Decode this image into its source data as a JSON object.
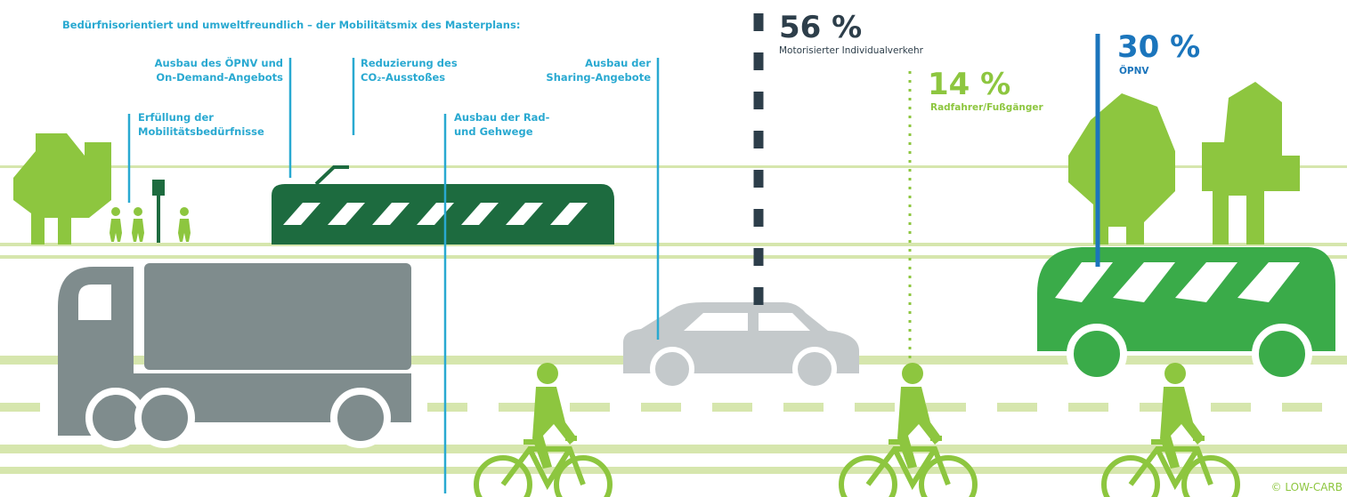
{
  "header": {
    "title": "Bedürfnisorientiert und umweltfreundlich – der Mobilitätsmix des Masterplans:"
  },
  "goals": [
    {
      "lines": [
        "Ausbau des ÖPNV und",
        "On-Demand-Angebots"
      ]
    },
    {
      "lines": [
        "Reduzierung des",
        "CO₂-Ausstoßes"
      ]
    },
    {
      "lines": [
        "Ausbau der",
        "Sharing-Angebote"
      ]
    },
    {
      "lines": [
        "Erfüllung der",
        "Mobilitätsbedürfnisse"
      ]
    },
    {
      "lines": [
        "Ausbau der Rad-",
        "und Gehwege"
      ]
    }
  ],
  "shares": [
    {
      "value": "56 %",
      "label": "Motorisierter Individualverkehr"
    },
    {
      "value": "14 %",
      "label": "Radfahrer/Fußgänger"
    },
    {
      "value": "30 %",
      "label": "ÖPNV"
    }
  ],
  "credit": "© LOW-CARB"
}
